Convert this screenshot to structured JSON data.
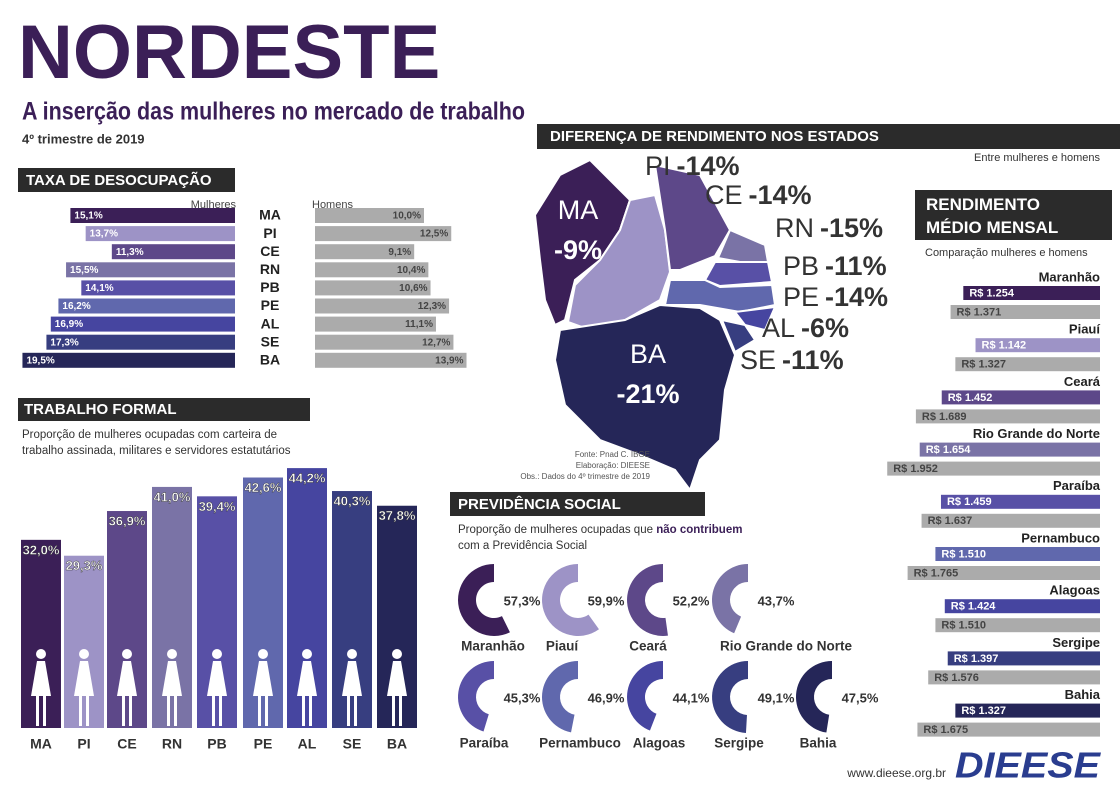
{
  "header": {
    "title": "NORDESTE",
    "subtitle": "A inserção das mulheres no mercado de trabalho",
    "date": "4º trimestre de 2019"
  },
  "chart_data": [
    {
      "type": "butterfly",
      "title": "TAXA DE DESOCUPAÇÃO",
      "categories": [
        "MA",
        "PI",
        "CE",
        "RN",
        "PB",
        "PE",
        "AL",
        "SE",
        "BA"
      ],
      "colors": [
        "#3b1f57",
        "#9d93c6",
        "#5d4889",
        "#7a73a6",
        "#5850a6",
        "#6068ad",
        "#4645a0",
        "#373e80",
        "#252658"
      ],
      "series": [
        {
          "name": "Mulheres",
          "values": [
            15.1,
            13.7,
            11.3,
            15.5,
            14.1,
            16.2,
            16.9,
            17.3,
            19.5
          ],
          "value_labels": [
            "15,1%",
            "13,7%",
            "11,3%",
            "15,5%",
            "14,1%",
            "16,2%",
            "16,9%",
            "17,3%",
            "19,5%"
          ]
        },
        {
          "name": "Homens",
          "color": "#ababab",
          "values": [
            10.0,
            12.5,
            9.1,
            10.4,
            10.6,
            12.3,
            11.1,
            12.7,
            13.9
          ],
          "value_labels": [
            "10,0%",
            "12,5%",
            "9,1%",
            "10,4%",
            "10,6%",
            "12,3%",
            "11,1%",
            "12,7%",
            "13,9%"
          ]
        }
      ]
    },
    {
      "type": "bar",
      "title": "TRABALHO FORMAL",
      "subtitle": "Proporção de mulheres ocupadas com carteira de trabalho assinada, militares e servidores estatutários",
      "categories": [
        "MA",
        "PI",
        "CE",
        "RN",
        "PB",
        "PE",
        "AL",
        "SE",
        "BA"
      ],
      "colors": [
        "#3b1f57",
        "#9d93c6",
        "#5d4889",
        "#7a73a6",
        "#5850a6",
        "#6068ad",
        "#4645a0",
        "#373e80",
        "#252658"
      ],
      "values": [
        32.0,
        29.3,
        36.9,
        41.0,
        39.4,
        42.6,
        44.2,
        40.3,
        37.8
      ],
      "value_labels": [
        "32,0%",
        "29,3%",
        "36,9%",
        "41,0%",
        "39,4%",
        "42,6%",
        "44,2%",
        "40,3%",
        "37,8%"
      ]
    },
    {
      "type": "map",
      "title": "DIFERENÇA DE RENDIMENTO NOS ESTADOS",
      "subtitle": "Entre mulheres e homens",
      "categories": [
        "MA",
        "PI",
        "CE",
        "RN",
        "PB",
        "PE",
        "AL",
        "SE",
        "BA"
      ],
      "colors": [
        "#3b1f57",
        "#9d93c6",
        "#5d4889",
        "#7a73a6",
        "#5850a6",
        "#6068ad",
        "#4645a0",
        "#373e80",
        "#252658"
      ],
      "values": [
        -9,
        -14,
        -14,
        -15,
        -11,
        -14,
        -6,
        -11,
        -21
      ],
      "value_labels": [
        "-9%",
        "-14%",
        "-14%",
        "-15%",
        "-11%",
        "-14%",
        "-6%",
        "-11%",
        "-21%"
      ],
      "notes": [
        "Fonte: Pnad C. IBGE",
        "Elaboração: DIEESE",
        "Obs.: Dados do 4º trimestre de 2019"
      ]
    },
    {
      "type": "donut",
      "title": "PREVIDÊNCIA SOCIAL",
      "subtitle": [
        "Proporção de mulheres ocupadas  que ",
        "não contribuem",
        "com a Previdência Social"
      ],
      "categories": [
        "Maranhão",
        "Piauí",
        "Ceará",
        "Rio Grande do Norte",
        "Paraíba",
        "Pernambuco",
        "Alagoas",
        "Sergipe",
        "Bahia"
      ],
      "colors": [
        "#3b1f57",
        "#9d93c6",
        "#5d4889",
        "#7a73a6",
        "#5850a6",
        "#6068ad",
        "#4645a0",
        "#373e80",
        "#252658"
      ],
      "values": [
        57.3,
        59.9,
        52.2,
        43.7,
        45.3,
        46.9,
        44.1,
        49.1,
        47.5
      ],
      "value_labels": [
        "57,3%",
        "59,9%",
        "52,2%",
        "43,7%",
        "45,3%",
        "46,9%",
        "44,1%",
        "49,1%",
        "47,5%"
      ]
    },
    {
      "type": "bar_pairs",
      "title": "RENDIMENTO MÉDIO MENSAL",
      "subtitle": "Comparação mulheres e homens",
      "categories": [
        "Maranhão",
        "Piauí",
        "Ceará",
        "Rio Grande do Norte",
        "Paraíba",
        "Pernambuco",
        "Alagoas",
        "Sergipe",
        "Bahia"
      ],
      "colors": [
        "#3b1f57",
        "#9d93c6",
        "#5d4889",
        "#7a73a6",
        "#5850a6",
        "#6068ad",
        "#4645a0",
        "#373e80",
        "#252658"
      ],
      "series": [
        {
          "values": [
            1254,
            1142,
            1452,
            1654,
            1459,
            1510,
            1424,
            1397,
            1327
          ],
          "value_labels": [
            "R$ 1.254",
            "R$ 1.142",
            "R$ 1.452",
            "R$ 1.654",
            "R$ 1.459",
            "R$ 1.510",
            "R$ 1.424",
            "R$ 1.397",
            "R$ 1.327"
          ]
        },
        {
          "color": "#ababab",
          "values": [
            1371,
            1327,
            1689,
            1952,
            1637,
            1765,
            1510,
            1576,
            1675
          ],
          "value_labels": [
            "R$ 1.371",
            "R$ 1.327",
            "R$ 1.689",
            "R$ 1.952",
            "R$ 1.637",
            "R$ 1.765",
            "R$ 1.510",
            "R$ 1.576",
            "R$ 1.675"
          ]
        }
      ]
    }
  ],
  "footer": {
    "url": "www.dieese.org.br",
    "logo": "DIEESE"
  }
}
